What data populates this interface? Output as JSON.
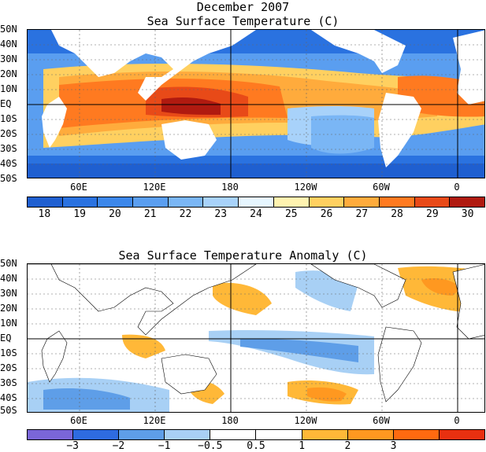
{
  "title": "December 2007",
  "panels": [
    {
      "title": "Sea Surface Temperature (C)",
      "lat_labels": [
        "50N",
        "40N",
        "30N",
        "20N",
        "10N",
        "EQ",
        "10S",
        "20S",
        "30S",
        "40S",
        "50S"
      ],
      "lon_labels": [
        "60E",
        "120E",
        "180",
        "120W",
        "60W",
        "0"
      ],
      "colorbar": {
        "colors": [
          "#1f5fd0",
          "#2a72e0",
          "#3c87ea",
          "#5a9ef0",
          "#7ab6f5",
          "#a8d2fa",
          "#e6f6ff",
          "#fff3b0",
          "#ffd060",
          "#ffab3c",
          "#ff7a20",
          "#e84a18",
          "#b01a10"
        ],
        "labels": [
          "18",
          "19",
          "20",
          "21",
          "22",
          "23",
          "24",
          "25",
          "26",
          "27",
          "28",
          "29",
          "30"
        ]
      }
    },
    {
      "title": "Sea Surface Temperature Anomaly (C)",
      "lat_labels": [
        "50N",
        "40N",
        "30N",
        "20N",
        "10N",
        "EQ",
        "10S",
        "20S",
        "30S",
        "40S",
        "50S"
      ],
      "lon_labels": [
        "60E",
        "120E",
        "180",
        "120W",
        "60W",
        "0"
      ],
      "colorbar": {
        "colors": [
          "#7a66d8",
          "#2e6be0",
          "#5e9ee8",
          "#a8d0f5",
          "#ffffff",
          "#ffffff",
          "#ffb838",
          "#ff9820",
          "#ff6a10",
          "#e83010"
        ],
        "labels": [
          "−3",
          "−2",
          "−1",
          "−0.5",
          "0.5",
          "1",
          "2",
          "3"
        ]
      }
    }
  ]
}
